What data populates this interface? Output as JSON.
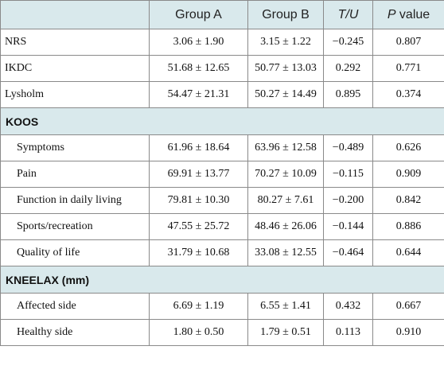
{
  "header": {
    "col_blank": "",
    "group_a": "Group A",
    "group_b": "Group B",
    "tu": "T/U",
    "p_prefix": "P",
    "p_suffix": " value"
  },
  "rows": [
    {
      "label": "NRS",
      "a": "3.06 ± 1.90",
      "b": "3.15 ± 1.22",
      "t": "−0.245",
      "p": "0.807"
    },
    {
      "label": "IKDC",
      "a": "51.68 ± 12.65",
      "b": "50.77 ± 13.03",
      "t": "0.292",
      "p": "0.771"
    },
    {
      "label": "Lysholm",
      "a": "54.47 ± 21.31",
      "b": "50.27 ± 14.49",
      "t": "0.895",
      "p": "0.374"
    }
  ],
  "koos": {
    "title": "KOOS",
    "rows": [
      {
        "label": "Symptoms",
        "a": "61.96 ± 18.64",
        "b": "63.96 ± 12.58",
        "t": "−0.489",
        "p": "0.626"
      },
      {
        "label": "Pain",
        "a": "69.91 ± 13.77",
        "b": "70.27 ± 10.09",
        "t": "−0.115",
        "p": "0.909"
      },
      {
        "label": "Function in daily living",
        "a": "79.81 ± 10.30",
        "b": "80.27 ± 7.61",
        "t": "−0.200",
        "p": "0.842"
      },
      {
        "label": "Sports/recreation",
        "a": "47.55 ± 25.72",
        "b": "48.46 ± 26.06",
        "t": "−0.144",
        "p": "0.886"
      },
      {
        "label": "Quality of life",
        "a": "31.79 ± 10.68",
        "b": "33.08 ± 12.55",
        "t": "−0.464",
        "p": "0.644"
      }
    ]
  },
  "kneelax": {
    "title": "KNEELAX (mm)",
    "rows": [
      {
        "label": "Affected side",
        "a": "6.69 ± 1.19",
        "b": "6.55 ± 1.41",
        "t": "0.432",
        "p": "0.667"
      },
      {
        "label": "Healthy side",
        "a": "1.80 ± 0.50",
        "b": "1.79 ± 0.51",
        "t": "0.113",
        "p": "0.910"
      }
    ]
  }
}
